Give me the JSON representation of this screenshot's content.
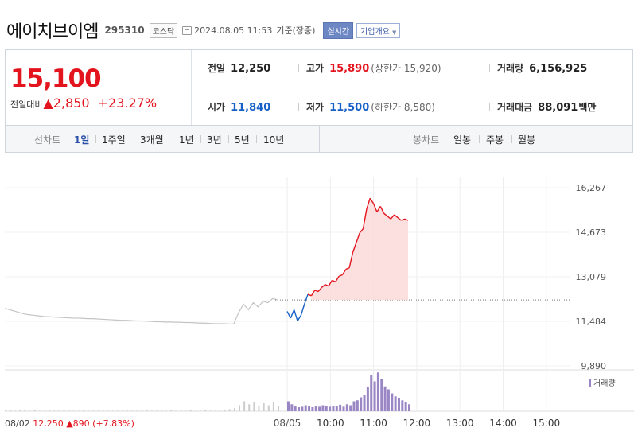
{
  "header": {
    "company": "에이치브이엠",
    "code": "295310",
    "market": "코스닥",
    "datetime": "2024.08.05 11:53",
    "basis": "기준(장중)",
    "realtime_btn": "실시간",
    "corp_btn": "기업개요",
    "corp_btn_arrow": "▼"
  },
  "price": {
    "current": "15,100",
    "change_label": "전일대비",
    "change_arrow": "▲",
    "change": "2,850",
    "change_rate": "+23.27%"
  },
  "stats": {
    "prev_close_label": "전일",
    "prev_close": "12,250",
    "high_label": "고가",
    "high": "15,890",
    "upper_limit": "(상한가 15,920)",
    "volume_label": "거래량",
    "volume": "6,156,925",
    "open_label": "시가",
    "open": "11,840",
    "low_label": "저가",
    "low": "11,500",
    "lower_limit": "(하한가 8,580)",
    "amount_label": "거래대금",
    "amount": "88,091",
    "amount_unit": "백만"
  },
  "tabs": {
    "line_label": "선차트",
    "line_items": [
      "1일",
      "1주일",
      "3개월",
      "1년",
      "3년",
      "5년",
      "10년"
    ],
    "active": "1일",
    "candle_label": "봉차트",
    "candle_items": [
      "일봉",
      "주봉",
      "월봉"
    ]
  },
  "colors": {
    "up": "#e3141e",
    "down": "#1561c7",
    "area_up": "#fcdada",
    "prev_day_line": "#c4c4c4",
    "volume_bar": "#9a86c4"
  },
  "chart_data": {
    "type": "line",
    "y_ticks": [
      "16,267",
      "14,673",
      "13,079",
      "11,484",
      "9,890"
    ],
    "ylim": [
      9890,
      16267
    ],
    "baseline": 12250,
    "volume_label": "거래량",
    "x_ticks": [
      "08/05",
      "10:00",
      "11:00",
      "12:00",
      "13:00",
      "14:00",
      "15:00"
    ],
    "prev_day": {
      "date": "08/02",
      "close": "12,250",
      "change_arrow": "▲",
      "change": "890",
      "change_rate": "(+7.83%)",
      "values": [
        11950,
        11900,
        11850,
        11800,
        11750,
        11720,
        11700,
        11680,
        11660,
        11650,
        11640,
        11630,
        11620,
        11610,
        11600,
        11600,
        11590,
        11580,
        11580,
        11570,
        11560,
        11550,
        11540,
        11530,
        11520,
        11520,
        11510,
        11500,
        11500,
        11490,
        11480,
        11470,
        11470,
        11460,
        11460,
        11450,
        11450,
        11440,
        11440,
        11430,
        11420,
        11420,
        11410,
        11400,
        11400,
        11400,
        11390,
        11390,
        11800,
        12100,
        11900,
        12150,
        12000,
        12200,
        12150,
        12300,
        12250
      ]
    },
    "today": {
      "times": [
        "09:00",
        "09:05",
        "09:10",
        "09:15",
        "09:20",
        "09:25",
        "09:30",
        "09:35",
        "09:40",
        "09:45",
        "09:50",
        "09:55",
        "10:00",
        "10:05",
        "10:10",
        "10:15",
        "10:20",
        "10:25",
        "10:30",
        "10:35",
        "10:40",
        "10:45",
        "10:50",
        "10:55",
        "11:00",
        "11:05",
        "11:10",
        "11:15",
        "11:20",
        "11:25",
        "11:30",
        "11:35",
        "11:40",
        "11:45",
        "11:50",
        "11:53"
      ],
      "values": [
        11840,
        11600,
        11900,
        11500,
        11700,
        12100,
        12450,
        12400,
        12600,
        12550,
        12700,
        12800,
        12750,
        12950,
        12900,
        13100,
        13150,
        13350,
        13400,
        13950,
        14300,
        14650,
        14800,
        15500,
        15890,
        15700,
        15400,
        15600,
        15350,
        15250,
        15150,
        15300,
        15200,
        15100,
        15150,
        15100
      ]
    },
    "prev_day_volume": [
      2,
      3,
      1,
      2,
      2,
      1,
      2,
      1,
      1,
      2,
      1,
      1,
      2,
      1,
      1,
      1,
      2,
      1,
      1,
      1,
      1,
      1,
      1,
      1,
      1,
      1,
      1,
      1,
      1,
      2,
      1,
      1,
      1,
      1,
      2,
      1,
      1,
      1,
      2,
      1,
      1,
      3,
      1,
      1,
      1,
      2,
      4,
      6,
      12,
      20,
      14,
      18,
      10,
      16,
      12,
      18,
      10
    ],
    "today_volume": [
      20,
      14,
      10,
      8,
      9,
      12,
      10,
      8,
      10,
      9,
      12,
      10,
      9,
      11,
      10,
      13,
      9,
      14,
      12,
      20,
      22,
      28,
      32,
      48,
      72,
      60,
      78,
      65,
      50,
      44,
      36,
      30,
      26,
      22,
      18,
      14
    ]
  }
}
